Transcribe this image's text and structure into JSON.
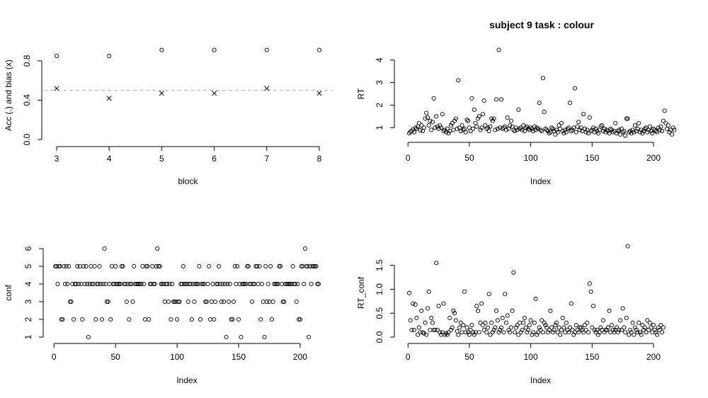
{
  "title": "subject 9 task : colour",
  "chart_data": [
    {
      "id": "acc-bias",
      "type": "scatter",
      "xlabel": "block",
      "ylabel": "Acc (.) and bias (x)",
      "xlim": [
        3,
        8
      ],
      "ylim": [
        0,
        0.9
      ],
      "xticks": [
        3,
        4,
        5,
        6,
        7,
        8
      ],
      "yticks": [
        0.0,
        0.4,
        0.8
      ],
      "ytick_labels": [
        "0.0",
        "0.4",
        "0.8"
      ],
      "reference_line": {
        "y": 0.5,
        "style": "dashed",
        "color": "#b0b0b0"
      },
      "series": [
        {
          "marker": "circle",
          "x": [
            3,
            4,
            5,
            6,
            7,
            8
          ],
          "y": [
            0.85,
            0.85,
            0.91,
            0.91,
            0.91,
            0.91
          ]
        },
        {
          "marker": "x",
          "x": [
            3,
            4,
            5,
            6,
            7,
            8
          ],
          "y": [
            0.52,
            0.42,
            0.47,
            0.47,
            0.52,
            0.47
          ]
        }
      ]
    },
    {
      "id": "rt",
      "type": "scatter",
      "xlabel": "Index",
      "ylabel": "RT",
      "xlim": [
        1,
        215
      ],
      "ylim": [
        0.6,
        4.4
      ],
      "xticks": [
        0,
        50,
        100,
        150,
        200
      ],
      "yticks": [
        1,
        2,
        3,
        4
      ],
      "ytick_labels": [
        "1",
        "2",
        "3",
        "4"
      ],
      "series": [
        {
          "marker": "circle",
          "y": [
            0.75,
            0.82,
            0.85,
            0.92,
            0.8,
            1.0,
            0.95,
            1.05,
            1.2,
            0.88,
            1.1,
            0.85,
            1.0,
            1.4,
            1.65,
            1.45,
            1.1,
            1.3,
            0.9,
            1.25,
            2.3,
            1.0,
            1.5,
            1.05,
            0.95,
            1.1,
            1.0,
            1.6,
            0.85,
            0.9,
            0.8,
            0.95,
            0.75,
            0.85,
            1.1,
            1.2,
            0.9,
            1.3,
            1.4,
            0.95,
            3.1,
            1.0,
            0.85,
            1.1,
            0.9,
            0.95,
            0.8,
            1.35,
            1.3,
            1.0,
            0.85,
            2.3,
            0.95,
            1.8,
            1.2,
            1.05,
            1.4,
            1.5,
            0.9,
            1.0,
            1.6,
            2.2,
            1.1,
            0.95,
            1.0,
            0.85,
            1.05,
            1.4,
            1.3,
            1.4,
            0.9,
            2.25,
            0.95,
            4.45,
            1.0,
            2.25,
            0.95,
            1.0,
            1.05,
            0.9,
            1.45,
            0.95,
            1.1,
            1.3,
            1.05,
            0.9,
            0.85,
            1.0,
            0.9,
            1.8,
            0.95,
            1.0,
            0.9,
            1.1,
            0.85,
            1.0,
            1.05,
            0.95,
            0.9,
            1.0,
            0.95,
            0.85,
            1.05,
            0.9,
            1.0,
            0.95,
            2.1,
            0.9,
            0.85,
            3.2,
            1.7,
            0.95,
            0.9,
            0.85,
            0.75,
            0.8,
            1.0,
            0.95,
            0.85,
            0.7,
            0.9,
            0.8,
            1.1,
            0.95,
            1.2,
            0.85,
            0.75,
            0.9,
            0.8,
            0.95,
            1.0,
            2.1,
            0.85,
            0.9,
            1.0,
            2.75,
            0.8,
            1.05,
            1.25,
            0.9,
            1.0,
            0.85,
            1.6,
            0.95,
            0.8,
            0.9,
            0.75,
            1.45,
            0.85,
            0.9,
            1.0,
            0.8,
            0.95,
            0.85,
            0.75,
            0.9,
            1.05,
            1.1,
            0.85,
            0.95,
            0.8,
            0.9,
            0.85,
            0.75,
            0.95,
            0.9,
            0.8,
            0.85,
            1.2,
            0.75,
            0.85,
            0.9,
            0.7,
            0.95,
            0.8,
            0.85,
            0.65,
            1.4,
            1.4,
            0.8,
            0.85,
            0.75,
            0.9,
            0.8,
            1.1,
            0.85,
            0.95,
            1.2,
            0.8,
            0.9,
            0.75,
            0.85,
            0.95,
            1.0,
            0.8,
            0.9,
            1.05,
            0.85,
            0.75,
            0.95,
            0.9,
            0.85,
            0.8,
            1.0,
            0.9,
            1.05,
            0.85,
            1.3,
            1.75,
            1.2,
            0.95,
            1.1,
            0.8,
            0.9,
            0.7,
            1.0,
            0.9
          ]
        }
      ]
    },
    {
      "id": "conf",
      "type": "scatter",
      "xlabel": "Index",
      "ylabel": "conf",
      "xlim": [
        1,
        215
      ],
      "ylim": [
        1,
        6
      ],
      "xticks": [
        0,
        50,
        100,
        150,
        200
      ],
      "yticks": [
        1,
        2,
        3,
        4,
        5,
        6
      ],
      "ytick_labels": [
        "1",
        "2",
        "3",
        "4",
        "5",
        "6"
      ],
      "series": [
        {
          "marker": "circle",
          "y": [
            5,
            5,
            4,
            5,
            5,
            2,
            2,
            5,
            4,
            5,
            4,
            5,
            3,
            3,
            4,
            2,
            4,
            4,
            5,
            4,
            5,
            4,
            2,
            5,
            4,
            5,
            4,
            1,
            4,
            5,
            4,
            4,
            5,
            2,
            4,
            4,
            5,
            4,
            2,
            4,
            6,
            4,
            3,
            3,
            4,
            2,
            5,
            4,
            4,
            5,
            4,
            4,
            4,
            4,
            5,
            5,
            4,
            4,
            3,
            4,
            2,
            4,
            4,
            3,
            5,
            4,
            4,
            4,
            4,
            4,
            4,
            5,
            4,
            2,
            5,
            5,
            2,
            4,
            4,
            5,
            4,
            4,
            5,
            6,
            5,
            5,
            4,
            4,
            4,
            3,
            4,
            4,
            3,
            4,
            2,
            4,
            3,
            3,
            3,
            2,
            3,
            3,
            4,
            4,
            5,
            4,
            4,
            4,
            3,
            4,
            4,
            2,
            4,
            3,
            4,
            4,
            4,
            5,
            2,
            4,
            4,
            4,
            3,
            3,
            4,
            5,
            2,
            3,
            4,
            2,
            3,
            4,
            4,
            5,
            4,
            3,
            4,
            3,
            4,
            1,
            4,
            3,
            4,
            2,
            2,
            3,
            5,
            4,
            5,
            2,
            4,
            1,
            4,
            4,
            4,
            4,
            5,
            5,
            4,
            4,
            3,
            4,
            4,
            5,
            5,
            4,
            5,
            2,
            4,
            3,
            1,
            5,
            3,
            4,
            3,
            5,
            2,
            3,
            4,
            4,
            4,
            4,
            5,
            5,
            4,
            3,
            3,
            4,
            4,
            4,
            4,
            4,
            4,
            5,
            4,
            4,
            3,
            4,
            2,
            2,
            5,
            5,
            4,
            6,
            5,
            5,
            1,
            5,
            4,
            5,
            5,
            5,
            5,
            4,
            4
          ]
        }
      ]
    },
    {
      "id": "rt-conf",
      "type": "scatter",
      "xlabel": "Index",
      "ylabel": "RT_conf",
      "xlim": [
        1,
        215
      ],
      "ylim": [
        0,
        1.85
      ],
      "xticks": [
        0,
        50,
        100,
        150,
        200
      ],
      "yticks": [
        0.0,
        0.5,
        1.0,
        1.5
      ],
      "ytick_labels": [
        "0.0",
        "0.5",
        "1.0",
        "1.5"
      ],
      "series": [
        {
          "marker": "circle",
          "y": [
            0.92,
            0.35,
            0.15,
            0.7,
            0.15,
            0.68,
            0.4,
            0.05,
            0.2,
            0.1,
            0.55,
            0.1,
            0.08,
            0.3,
            0.05,
            0.6,
            0.95,
            0.15,
            0.4,
            0.3,
            0.15,
            0.15,
            1.55,
            0.15,
            0.65,
            0.1,
            0.05,
            0.1,
            0.7,
            0.05,
            0.08,
            0.05,
            0.1,
            0.4,
            0.15,
            0.2,
            0.55,
            0.5,
            0.35,
            0.12,
            0.05,
            0.2,
            0.3,
            0.1,
            0.25,
            0.95,
            0.1,
            0.2,
            0.1,
            0.05,
            0.15,
            0.25,
            0.1,
            0.05,
            0.1,
            0.65,
            0.55,
            0.1,
            0.3,
            0.7,
            0.25,
            0.15,
            0.3,
            0.1,
            0.2,
            0.9,
            0.05,
            0.3,
            0.1,
            0.15,
            0.2,
            0.55,
            0.35,
            0.1,
            0.15,
            0.2,
            0.4,
            0.1,
            0.9,
            0.3,
            0.45,
            0.15,
            0.1,
            0.2,
            0.55,
            1.35,
            0.1,
            0.2,
            0.25,
            0.05,
            0.3,
            0.1,
            0.15,
            0.3,
            0.4,
            0.2,
            0.1,
            0.15,
            0.25,
            0.35,
            0.05,
            0.1,
            0.3,
            0.8,
            0.05,
            0.1,
            0.2,
            0.15,
            0.35,
            0.1,
            0.3,
            0.25,
            0.2,
            0.1,
            0.15,
            0.55,
            0.2,
            0.1,
            0.15,
            0.25,
            0.3,
            0.1,
            0.2,
            0.05,
            0.15,
            0.4,
            0.2,
            0.1,
            0.3,
            0.15,
            0.1,
            0.2,
            0.7,
            0.15,
            0.05,
            0.1,
            0.25,
            0.15,
            0.1,
            0.2,
            0.2,
            0.15,
            0.1,
            0.25,
            0.15,
            0.3,
            0.1,
            1.12,
            0.95,
            0.2,
            0.65,
            0.15,
            0.1,
            0.15,
            0.05,
            0.1,
            0.2,
            0.15,
            0.35,
            0.1,
            0.15,
            0.15,
            0.2,
            0.55,
            0.1,
            0.25,
            0.15,
            0.1,
            0.15,
            0.2,
            0.1,
            0.15,
            0.35,
            0.15,
            0.6,
            0.2,
            0.1,
            0.4,
            1.9,
            0.05,
            0.15,
            0.1,
            0.3,
            0.05,
            0.2,
            0.15,
            0.1,
            0.3,
            0.1,
            0.05,
            0.25,
            0.15,
            0.2,
            0.1,
            0.35,
            0.15,
            0.3,
            0.2,
            0.1,
            0.25,
            0.15,
            0.1,
            0.05,
            0.2,
            0.15,
            0.25,
            0.1,
            0.2
          ]
        }
      ]
    }
  ]
}
